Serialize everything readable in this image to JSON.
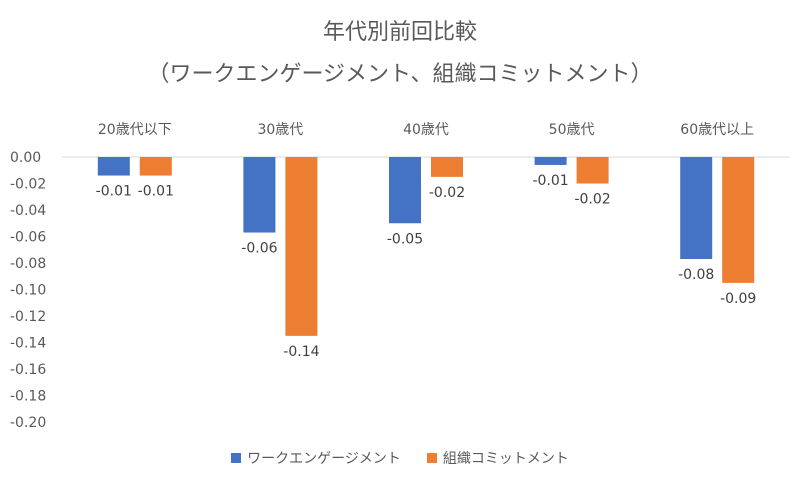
{
  "chart_data": {
    "type": "bar",
    "title": "年代別前回比較",
    "subtitle": "（ワークエンゲージメント、組織コミットメント）",
    "categories": [
      "20歳代以下",
      "30歳代",
      "40歳代",
      "50歳代",
      "60歳代以上"
    ],
    "series": [
      {
        "name": "ワークエンゲージメント",
        "color": "#4472C4",
        "values": [
          -0.014,
          -0.057,
          -0.05,
          -0.006,
          -0.077
        ],
        "labels": [
          "-0.01",
          "-0.06",
          "-0.05",
          "-0.01",
          "-0.08"
        ]
      },
      {
        "name": "組織コミットメント",
        "color": "#ED7D31",
        "values": [
          -0.014,
          -0.135,
          -0.015,
          -0.02,
          -0.095
        ],
        "labels": [
          "-0.01",
          "-0.14",
          "-0.02",
          "-0.02",
          "-0.09"
        ]
      }
    ],
    "ylim": [
      -0.2,
      0.0
    ],
    "yticks": [
      "0.00",
      "-0.02",
      "-0.04",
      "-0.06",
      "-0.08",
      "-0.10",
      "-0.12",
      "-0.14",
      "-0.16",
      "-0.18",
      "-0.20"
    ],
    "category_axis_position": "top",
    "grid": false,
    "legend": "bottom",
    "xlabel": "",
    "ylabel": ""
  }
}
